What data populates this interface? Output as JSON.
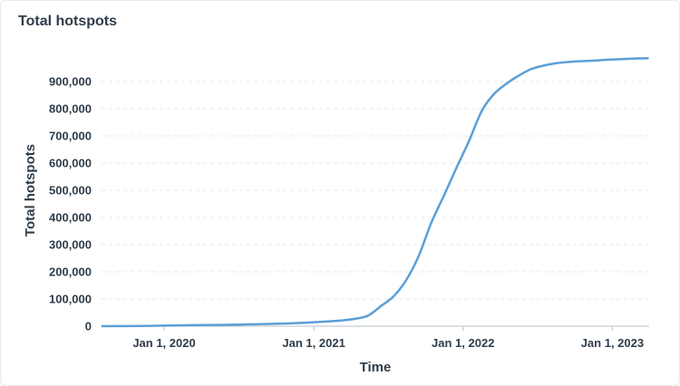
{
  "card": {
    "title": "Total hotspots"
  },
  "chart_data": {
    "type": "line",
    "title": "Total hotspots",
    "xlabel": "Time",
    "ylabel": "Total hotspots",
    "x_ticks": [
      "Jan 1, 2020",
      "Jan 1, 2021",
      "Jan 1, 2022",
      "Jan 1, 2023"
    ],
    "x_range": [
      "2019-08-01",
      "2023-04-01"
    ],
    "y_ticks": [
      "0",
      "100,000",
      "200,000",
      "300,000",
      "400,000",
      "500,000",
      "600,000",
      "700,000",
      "800,000",
      "900,000"
    ],
    "ylim": [
      0,
      1000000
    ],
    "grid": true,
    "color": "#5b9fd8",
    "series": [
      {
        "x": [
          "2019-08-01",
          "2019-10-01",
          "2019-12-01",
          "2020-02-01",
          "2020-04-01",
          "2020-06-01",
          "2020-08-01",
          "2020-10-01",
          "2020-12-01",
          "2021-01-15",
          "2021-03-01",
          "2021-04-15",
          "2021-05-15",
          "2021-06-15",
          "2021-07-15",
          "2021-08-15",
          "2021-09-15",
          "2021-10-15",
          "2021-11-15",
          "2021-12-15",
          "2022-01-15",
          "2022-02-15",
          "2022-03-15",
          "2022-04-15",
          "2022-05-15",
          "2022-06-15",
          "2022-07-15",
          "2022-08-15",
          "2022-09-15",
          "2022-10-15",
          "2022-11-15",
          "2022-12-15",
          "2023-01-15",
          "2023-02-15",
          "2023-03-31"
        ],
        "y": [
          0,
          500,
          1500,
          3000,
          4000,
          5000,
          7000,
          9000,
          12000,
          16000,
          20000,
          28000,
          40000,
          75000,
          110000,
          170000,
          260000,
          380000,
          480000,
          580000,
          680000,
          790000,
          850000,
          890000,
          920000,
          945000,
          958000,
          967000,
          972000,
          975000,
          977000,
          980000,
          982000,
          984000,
          986000
        ]
      }
    ]
  }
}
